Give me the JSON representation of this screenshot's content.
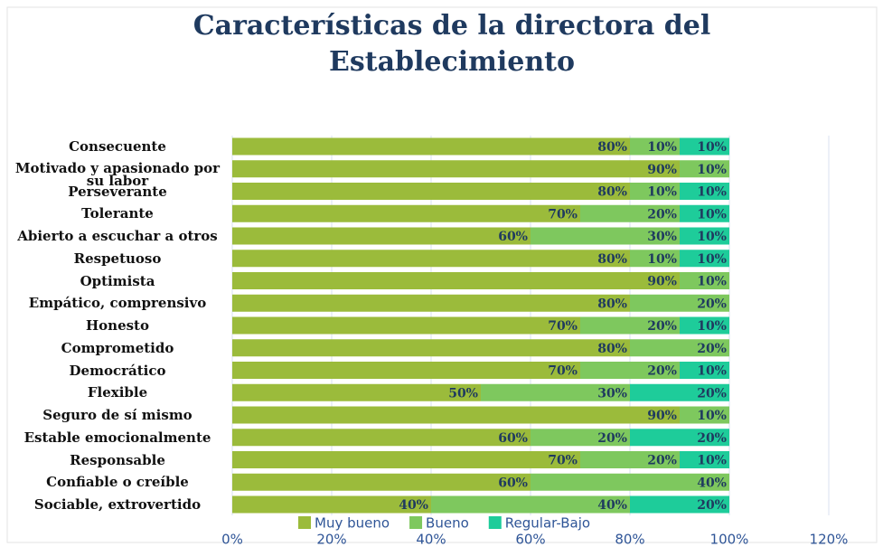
{
  "chart_data": {
    "type": "stacked_bar_horizontal",
    "title": "Características de la directora del Establecimiento",
    "categories": [
      "Consecuente",
      "Motivado y apasionado por su labor",
      "Perseverante",
      "Tolerante",
      "Abierto a escuchar a otros",
      "Respetuoso",
      "Optimista",
      "Empático, comprensivo",
      "Honesto",
      "Comprometido",
      "Democrático",
      "Flexible",
      "Seguro de sí mismo",
      "Estable emocionalmente",
      "Responsable",
      "Confiable o creíble",
      "Sociable, extrovertido"
    ],
    "series": [
      {
        "name": "Muy bueno",
        "color": "#9bbb3b",
        "values": [
          80,
          90,
          80,
          70,
          60,
          80,
          90,
          80,
          70,
          80,
          70,
          50,
          90,
          60,
          70,
          60,
          40
        ],
        "value_labels": [
          "80%",
          "90%",
          "80%",
          "70%",
          "60%",
          "80%",
          "90%",
          "80%",
          "70%",
          "80%",
          "70%",
          "50%",
          "90%",
          "60%",
          "70%",
          "60%",
          "40%"
        ]
      },
      {
        "name": "Bueno",
        "color": "#7ec85e",
        "values": [
          10,
          10,
          10,
          20,
          30,
          10,
          10,
          20,
          20,
          20,
          20,
          30,
          10,
          20,
          20,
          40,
          40
        ],
        "value_labels": [
          "10%",
          "10%",
          "10%",
          "20%",
          "30%",
          "10%",
          "10%",
          "20%",
          "20%",
          "20%",
          "20%",
          "30%",
          "10%",
          "20%",
          "20%",
          "40%",
          "40%"
        ]
      },
      {
        "name": "Regular-Bajo",
        "color": "#1ecc9a",
        "values": [
          10,
          0,
          10,
          10,
          10,
          10,
          0,
          0,
          10,
          0,
          10,
          20,
          0,
          20,
          10,
          0,
          20
        ],
        "value_labels": [
          "10%",
          null,
          "10%",
          "10%",
          "10%",
          "10%",
          null,
          null,
          "10%",
          null,
          "10%",
          "20%",
          null,
          "20%",
          "10%",
          null,
          "20%"
        ]
      }
    ],
    "xlim": [
      0,
      120
    ],
    "xticks": [
      {
        "value": 0,
        "label": "0%"
      },
      {
        "value": 20,
        "label": "20%"
      },
      {
        "value": 40,
        "label": "40%"
      },
      {
        "value": 60,
        "label": "60%"
      },
      {
        "value": 80,
        "label": "80%"
      },
      {
        "value": 100,
        "label": "100%"
      },
      {
        "value": 120,
        "label": "120%"
      }
    ],
    "grid": true,
    "legend": "bottom"
  }
}
